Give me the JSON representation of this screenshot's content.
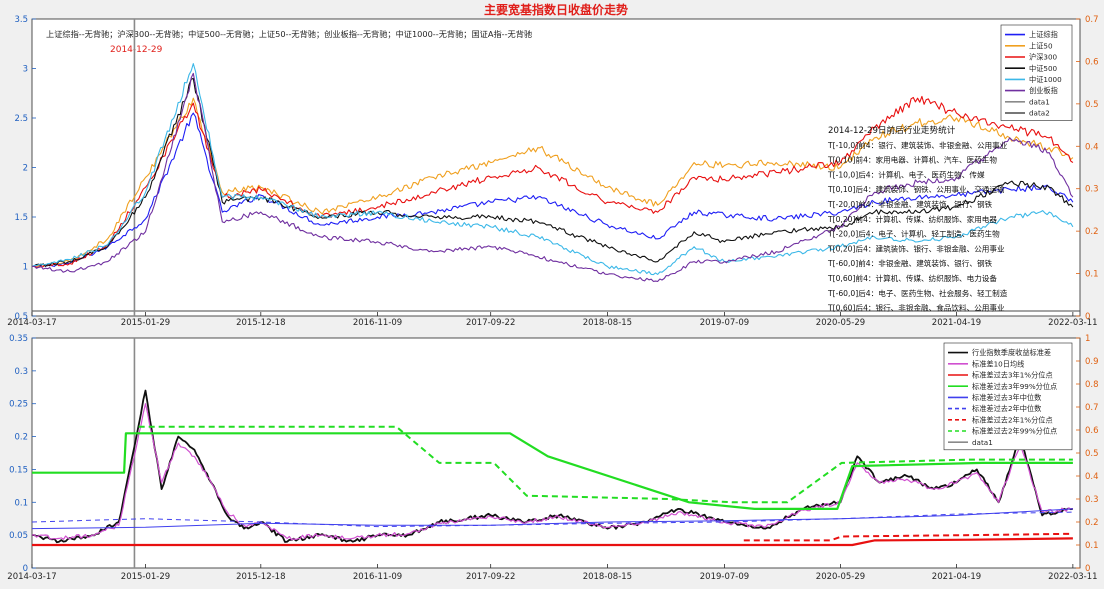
{
  "figure": {
    "title": "主要宽基指数日收盘价走势",
    "title_color": "#e0201b",
    "background": "#f0f0f0"
  },
  "chart_data": [
    {
      "type": "line",
      "title": "主要宽基指数日收盘价走势",
      "subtitle": "上证综指--无背驰；沪深300--无背驰；中证500--无背驰；上证50--无背驰；创业板指--无背驰；中证1000--无背驰；国证A指--无背驰",
      "xlabel": "",
      "ylabel": "",
      "x_tick_labels": [
        "2014-03-17",
        "2015-01-29",
        "2015-12-18",
        "2016-11-09",
        "2017-09-22",
        "2018-08-15",
        "2019-07-09",
        "2020-05-29",
        "2021-04-19",
        "2022-03-11"
      ],
      "x_range": [
        "2014-03-17",
        "2022-03-31"
      ],
      "ylim": [
        0.5,
        3.5
      ],
      "y_ticks": [
        0.5,
        1,
        1.5,
        2,
        2.5,
        3,
        3.5
      ],
      "y2lim": [
        0,
        0.7
      ],
      "y2_ticks": [
        0,
        0.1,
        0.2,
        0.3,
        0.4,
        0.5,
        0.6,
        0.7
      ],
      "grid": false,
      "legend_position": "top-right",
      "marker": {
        "date": "2014-12-29",
        "label": "2014-12-29",
        "label_color": "#e0201b"
      },
      "baseline": 0.55,
      "series": [
        {
          "name": "上证综指",
          "color": "#1f1ff5",
          "x": [
            "2014-03-17",
            "2014-07-01",
            "2014-10-15",
            "2015-01-29",
            "2015-06-12",
            "2015-09-01",
            "2015-12-18",
            "2016-06-01",
            "2016-11-09",
            "2017-04-15",
            "2017-09-22",
            "2018-02-01",
            "2018-08-15",
            "2019-01-03",
            "2019-04-15",
            "2019-07-09",
            "2019-12-01",
            "2020-05-29",
            "2020-09-01",
            "2020-12-31",
            "2021-04-19",
            "2021-09-15",
            "2022-01-04",
            "2022-03-11"
          ],
          "values": [
            1.0,
            1.03,
            1.2,
            1.48,
            2.55,
            1.55,
            1.72,
            1.42,
            1.5,
            1.55,
            1.65,
            1.7,
            1.42,
            1.28,
            1.55,
            1.52,
            1.48,
            1.55,
            1.65,
            1.7,
            1.72,
            1.78,
            1.8,
            1.65
          ]
        },
        {
          "name": "上证50",
          "color": "#f0a020",
          "x": [
            "2014-03-17",
            "2014-07-01",
            "2014-10-15",
            "2015-01-29",
            "2015-06-12",
            "2015-09-01",
            "2015-12-18",
            "2016-06-01",
            "2016-11-09",
            "2017-04-15",
            "2017-09-22",
            "2018-02-01",
            "2018-08-15",
            "2019-01-03",
            "2019-04-15",
            "2019-07-09",
            "2019-12-01",
            "2020-05-29",
            "2020-09-01",
            "2020-12-31",
            "2021-04-19",
            "2021-09-15",
            "2022-01-04",
            "2022-03-11"
          ],
          "values": [
            1.0,
            1.05,
            1.28,
            1.9,
            2.7,
            1.75,
            1.8,
            1.55,
            1.7,
            1.9,
            2.05,
            2.2,
            1.8,
            1.62,
            2.05,
            2.02,
            2.05,
            2.0,
            2.3,
            2.45,
            2.5,
            2.3,
            2.2,
            2.1
          ]
        },
        {
          "name": "沪深300",
          "color": "#e81010",
          "x": [
            "2014-03-17",
            "2014-07-01",
            "2014-10-15",
            "2015-01-29",
            "2015-06-12",
            "2015-09-01",
            "2015-12-18",
            "2016-06-01",
            "2016-11-09",
            "2017-04-15",
            "2017-09-22",
            "2018-02-01",
            "2018-08-15",
            "2019-01-03",
            "2019-04-15",
            "2019-07-09",
            "2019-12-01",
            "2020-05-29",
            "2020-09-01",
            "2020-12-31",
            "2021-04-19",
            "2021-09-15",
            "2022-01-04",
            "2022-03-11"
          ],
          "values": [
            1.0,
            1.03,
            1.22,
            1.8,
            2.65,
            1.7,
            1.78,
            1.5,
            1.6,
            1.75,
            1.9,
            2.0,
            1.65,
            1.55,
            1.9,
            1.88,
            1.95,
            2.05,
            2.4,
            2.7,
            2.55,
            2.4,
            2.3,
            2.05
          ]
        },
        {
          "name": "中证500",
          "color": "#101010",
          "x": [
            "2014-03-17",
            "2014-07-01",
            "2014-10-15",
            "2015-01-29",
            "2015-06-12",
            "2015-09-01",
            "2015-12-18",
            "2016-06-01",
            "2016-11-09",
            "2017-04-15",
            "2017-09-22",
            "2018-02-01",
            "2018-08-15",
            "2019-01-03",
            "2019-04-15",
            "2019-07-09",
            "2019-12-01",
            "2020-05-29",
            "2020-09-01",
            "2020-12-31",
            "2021-04-19",
            "2021-09-15",
            "2022-01-04",
            "2022-03-11"
          ],
          "values": [
            1.0,
            1.05,
            1.2,
            1.7,
            2.9,
            1.65,
            1.7,
            1.5,
            1.55,
            1.5,
            1.5,
            1.45,
            1.2,
            1.05,
            1.35,
            1.25,
            1.35,
            1.4,
            1.55,
            1.55,
            1.6,
            1.85,
            1.8,
            1.6
          ]
        },
        {
          "name": "中证1000",
          "color": "#3cb8e8",
          "x": [
            "2014-03-17",
            "2014-07-01",
            "2014-10-15",
            "2015-01-29",
            "2015-06-12",
            "2015-09-01",
            "2015-12-18",
            "2016-06-01",
            "2016-11-09",
            "2017-04-15",
            "2017-09-22",
            "2018-02-01",
            "2018-08-15",
            "2019-01-03",
            "2019-04-15",
            "2019-07-09",
            "2019-12-01",
            "2020-05-29",
            "2020-09-01",
            "2020-12-31",
            "2021-04-19",
            "2021-09-15",
            "2022-01-04",
            "2022-03-11"
          ],
          "values": [
            1.0,
            1.07,
            1.22,
            1.75,
            3.05,
            1.7,
            1.7,
            1.5,
            1.55,
            1.45,
            1.4,
            1.3,
            1.0,
            0.92,
            1.2,
            1.05,
            1.1,
            1.2,
            1.3,
            1.25,
            1.3,
            1.5,
            1.55,
            1.4
          ]
        },
        {
          "name": "创业板指",
          "color": "#7030a0",
          "x": [
            "2014-03-17",
            "2014-07-01",
            "2014-10-15",
            "2015-01-29",
            "2015-06-12",
            "2015-09-01",
            "2015-12-18",
            "2016-06-01",
            "2016-11-09",
            "2017-04-15",
            "2017-09-22",
            "2018-02-01",
            "2018-08-15",
            "2019-01-03",
            "2019-04-15",
            "2019-07-09",
            "2019-12-01",
            "2020-05-29",
            "2020-09-01",
            "2020-12-31",
            "2021-04-19",
            "2021-09-15",
            "2022-01-04",
            "2022-03-11"
          ],
          "values": [
            1.0,
            0.95,
            1.05,
            1.35,
            2.95,
            1.45,
            1.55,
            1.3,
            1.25,
            1.15,
            1.2,
            1.1,
            0.92,
            0.85,
            1.05,
            1.05,
            1.15,
            1.4,
            1.75,
            1.85,
            1.9,
            2.3,
            2.15,
            1.7
          ]
        }
      ],
      "legend_entries": [
        "上证综指",
        "上证50",
        "沪深300",
        "中证500",
        "中证1000",
        "创业板指",
        "data1",
        "data2"
      ],
      "legend_colors": [
        "#1f1ff5",
        "#f0a020",
        "#e81010",
        "#101010",
        "#3cb8e8",
        "#7030a0",
        "#8a8a8a",
        "#4a4a4a"
      ],
      "annotations": [
        "2014-12-29日前后行业走势统计",
        "T[-10,0]前4：银行、建筑装饰、非银金融、公用事业",
        "T[0,10]前4：家用电器、计算机、汽车、医药生物",
        "T[-10,0]后4：计算机、电子、医药生物、传媒",
        "T[0,10]后4：建筑装饰、钢铁、公用事业、交通运输",
        "T[-20,0]前4：非银金融、建筑装饰、银行、钢铁",
        "T[0,20]前4：计算机、传媒、纺织服饰、家用电器",
        "T[-20,0]后4：电子、计算机、轻工制造、医药生物",
        "T[0,20]后4：建筑装饰、银行、非银金融、公用事业",
        "T[-60,0]前4：非银金融、建筑装饰、银行、钢铁",
        "T[0,60]前4：计算机、传媒、纺织服饰、电力设备",
        "T[-60,0]后4：电子、医药生物、社会服务、轻工制造",
        "T[0,60]后4：银行、非银金融、食品饮料、公用事业"
      ]
    },
    {
      "type": "line",
      "title": "",
      "xlabel": "",
      "ylabel": "",
      "x_tick_labels": [
        "2014-03-17",
        "2015-01-29",
        "2015-12-18",
        "2016-11-09",
        "2017-09-22",
        "2018-08-15",
        "2019-07-09",
        "2020-05-29",
        "2021-04-19",
        "2022-03-11"
      ],
      "x_range": [
        "2014-03-17",
        "2022-03-31"
      ],
      "ylim": [
        0,
        0.35
      ],
      "y_ticks": [
        0,
        0.05,
        0.1,
        0.15,
        0.2,
        0.25,
        0.3,
        0.35
      ],
      "y2lim": [
        0,
        1
      ],
      "y2_ticks": [
        0,
        0.1,
        0.2,
        0.3,
        0.4,
        0.5,
        0.6,
        0.7,
        0.8,
        0.9,
        1
      ],
      "grid": false,
      "legend_position": "top-right",
      "marker": {
        "date": "2014-12-29"
      },
      "series": [
        {
          "name": "行业指数季度收益标准差",
          "color": "#101010",
          "width": 1.8,
          "x": [
            "2014-03-17",
            "2014-06-01",
            "2014-09-01",
            "2014-11-15",
            "2015-01-29",
            "2015-03-15",
            "2015-05-01",
            "2015-06-15",
            "2015-08-01",
            "2015-09-15",
            "2015-11-01",
            "2015-12-18",
            "2016-03-01",
            "2016-06-01",
            "2016-09-01",
            "2016-11-09",
            "2017-02-01",
            "2017-05-01",
            "2017-09-22",
            "2018-01-01",
            "2018-04-01",
            "2018-08-15",
            "2018-12-01",
            "2019-03-01",
            "2019-07-09",
            "2019-11-01",
            "2020-02-15",
            "2020-05-29",
            "2020-07-15",
            "2020-09-15",
            "2020-12-01",
            "2021-02-15",
            "2021-04-19",
            "2021-06-15",
            "2021-08-15",
            "2021-10-15",
            "2021-12-15",
            "2022-03-11"
          ],
          "values": [
            0.05,
            0.04,
            0.05,
            0.07,
            0.27,
            0.12,
            0.2,
            0.18,
            0.13,
            0.08,
            0.06,
            0.07,
            0.04,
            0.05,
            0.04,
            0.05,
            0.05,
            0.07,
            0.08,
            0.07,
            0.08,
            0.06,
            0.07,
            0.09,
            0.07,
            0.06,
            0.09,
            0.1,
            0.17,
            0.13,
            0.14,
            0.12,
            0.13,
            0.15,
            0.1,
            0.2,
            0.08,
            0.09
          ]
        },
        {
          "name": "标准差10日均线",
          "color": "#d050d0",
          "width": 1.2,
          "x": [
            "2014-03-17",
            "2014-06-01",
            "2014-09-01",
            "2014-11-15",
            "2015-01-29",
            "2015-03-15",
            "2015-05-01",
            "2015-06-15",
            "2015-08-01",
            "2015-09-15",
            "2015-11-01",
            "2015-12-18",
            "2016-03-01",
            "2016-06-01",
            "2016-09-01",
            "2016-11-09",
            "2017-02-01",
            "2017-05-01",
            "2017-09-22",
            "2018-01-01",
            "2018-04-01",
            "2018-08-15",
            "2018-12-01",
            "2019-03-01",
            "2019-07-09",
            "2019-11-01",
            "2020-02-15",
            "2020-05-29",
            "2020-07-15",
            "2020-09-15",
            "2020-12-01",
            "2021-02-15",
            "2021-04-19",
            "2021-06-15",
            "2021-08-15",
            "2021-10-15",
            "2021-12-15",
            "2022-03-11"
          ],
          "values": [
            0.05,
            0.045,
            0.05,
            0.065,
            0.25,
            0.13,
            0.19,
            0.17,
            0.13,
            0.085,
            0.065,
            0.07,
            0.045,
            0.05,
            0.045,
            0.05,
            0.052,
            0.068,
            0.078,
            0.07,
            0.078,
            0.062,
            0.07,
            0.085,
            0.07,
            0.062,
            0.088,
            0.1,
            0.16,
            0.13,
            0.135,
            0.12,
            0.13,
            0.145,
            0.1,
            0.19,
            0.085,
            0.09
          ]
        },
        {
          "name": "标准差过去3年1%分位点",
          "color": "#e81010",
          "width": 2.2,
          "x": [
            "2014-03-17",
            "2020-07-01",
            "2020-09-01",
            "2021-06-01",
            "2022-03-11"
          ],
          "values": [
            0.035,
            0.035,
            0.042,
            0.043,
            0.045
          ]
        },
        {
          "name": "标准差过去3年99%分位点",
          "color": "#22dd22",
          "width": 2.2,
          "x": [
            "2014-03-17",
            "2014-11-30",
            "2014-12-05",
            "2015-02-05",
            "2017-11-15",
            "2018-03-01",
            "2019-04-01",
            "2019-10-01",
            "2020-05-20",
            "2020-07-01",
            "2021-06-30",
            "2022-03-11"
          ],
          "values": [
            0.145,
            0.145,
            0.205,
            0.205,
            0.205,
            0.17,
            0.1,
            0.09,
            0.09,
            0.155,
            0.16,
            0.16
          ]
        },
        {
          "name": "标准差过去3年中位数",
          "color": "#4040ee",
          "width": 1,
          "x": [
            "2014-03-17",
            "2015-01-29",
            "2015-12-18",
            "2016-11-09",
            "2017-09-22",
            "2018-08-15",
            "2019-07-09",
            "2020-05-29",
            "2021-04-19",
            "2022-03-11"
          ],
          "values": [
            0.06,
            0.062,
            0.068,
            0.065,
            0.065,
            0.07,
            0.072,
            0.075,
            0.08,
            0.09
          ]
        },
        {
          "name": "标准差过去2年中位数",
          "color": "#4040ee",
          "width": 1,
          "dash": "5,4",
          "x": [
            "2014-03-17",
            "2015-01-29",
            "2015-12-18",
            "2016-11-09",
            "2017-09-22",
            "2018-08-15",
            "2019-07-09",
            "2020-05-29",
            "2021-04-19",
            "2022-03-11"
          ],
          "values": [
            0.07,
            0.075,
            0.07,
            0.063,
            0.065,
            0.068,
            0.07,
            0.075,
            0.082,
            0.085
          ]
        },
        {
          "name": "标准差过去2年1%分位点",
          "color": "#e81010",
          "width": 2,
          "dash": "6,4",
          "x": [
            "2019-09-01",
            "2020-05-01",
            "2020-06-01",
            "2021-06-01",
            "2022-03-11"
          ],
          "values": [
            0.042,
            0.042,
            0.048,
            0.05,
            0.052
          ]
        },
        {
          "name": "标准差过去2年99%分位点",
          "color": "#22dd22",
          "width": 2,
          "dash": "6,4",
          "x": [
            "2015-01-10",
            "2017-01-01",
            "2017-05-01",
            "2017-10-01",
            "2018-01-01",
            "2019-02-01",
            "2019-08-01",
            "2020-01-01",
            "2020-06-01",
            "2021-06-01",
            "2022-03-11"
          ],
          "values": [
            0.215,
            0.215,
            0.16,
            0.16,
            0.11,
            0.105,
            0.1,
            0.1,
            0.16,
            0.165,
            0.165
          ]
        }
      ],
      "legend_entries": [
        "行业指数季度收益标准差",
        "标准差10日均线",
        "标准差过去3年1%分位点",
        "标准差过去3年99%分位点",
        "标准差过去3年中位数",
        "标准差过去2年中位数",
        "标准差过去2年1%分位点",
        "标准差过去2年99%分位点",
        "data1"
      ],
      "legend_colors": [
        "#101010",
        "#d050d0",
        "#e81010",
        "#22dd22",
        "#4040ee",
        "#4040ee",
        "#e81010",
        "#22dd22",
        "#8a8a8a"
      ],
      "legend_dashed": [
        false,
        false,
        false,
        false,
        false,
        true,
        true,
        true,
        false
      ]
    }
  ]
}
